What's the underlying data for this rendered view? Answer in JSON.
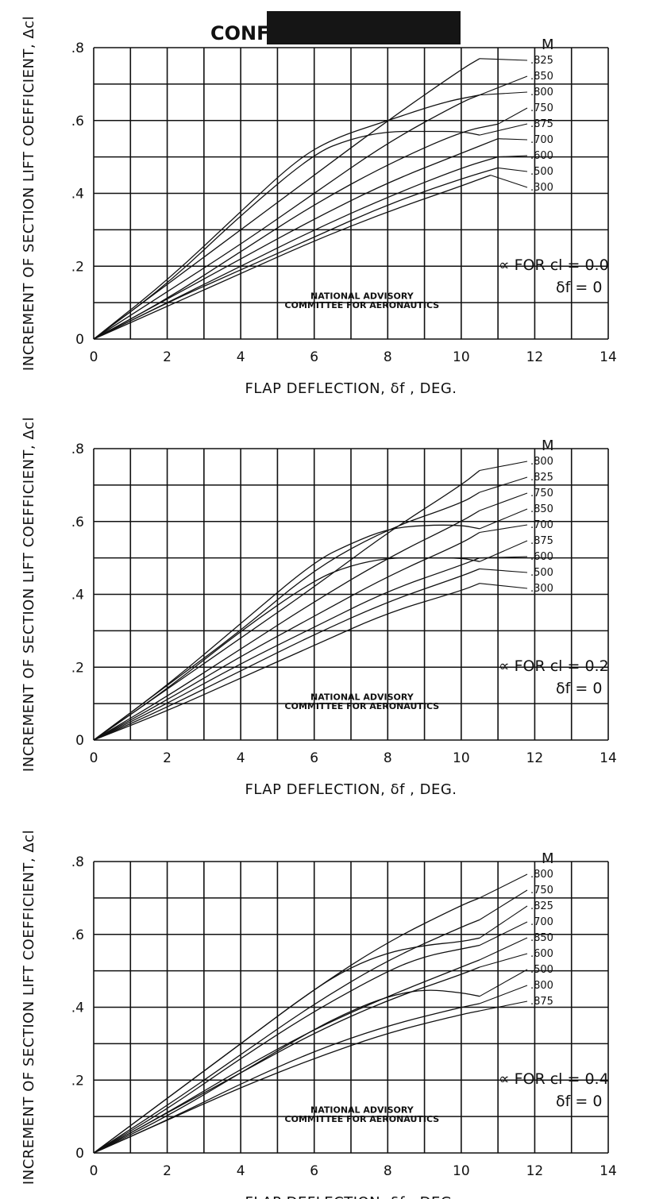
{
  "header": {
    "stamp_text": "CONF"
  },
  "chart_data": [
    {
      "type": "line",
      "xlabel": "FLAP DEFLECTION, δf , DEG.",
      "ylabel": "INCREMENT OF SECTION LIFT COEFFICIENT, Δcl",
      "legend_title": "M",
      "condition": [
        "∝ FOR cl = 0.0",
        "δf = 0"
      ],
      "note": [
        "NATIONAL ADVISORY",
        "COMMITTEE FOR AERONAUTICS"
      ],
      "xlim": [
        0,
        14
      ],
      "ylim": [
        0,
        0.8
      ],
      "x_ticks": [
        0,
        2,
        4,
        6,
        8,
        10,
        12,
        14
      ],
      "x_tick_labels": [
        "0",
        "2",
        "4",
        "6",
        "8",
        "10",
        "12",
        "14"
      ],
      "y_ticks": [
        0,
        0.2,
        0.4,
        0.6,
        0.8
      ],
      "y_tick_labels": [
        "0",
        ".2",
        ".4",
        ".6",
        ".8"
      ],
      "grid": true,
      "series": [
        {
          "name": ".825",
          "x": [
            0,
            2,
            4,
            6,
            8,
            10,
            10.5
          ],
          "y": [
            0,
            0.15,
            0.3,
            0.45,
            0.6,
            0.74,
            0.77
          ]
        },
        {
          "name": ".850",
          "x": [
            0,
            2,
            4,
            5.5,
            6.5,
            8,
            9.5,
            10.5
          ],
          "y": [
            0,
            0.16,
            0.35,
            0.49,
            0.55,
            0.6,
            0.65,
            0.67
          ]
        },
        {
          "name": ".800",
          "x": [
            0,
            2,
            4,
            6,
            8,
            10,
            10.5
          ],
          "y": [
            0,
            0.13,
            0.26,
            0.4,
            0.54,
            0.65,
            0.67
          ]
        },
        {
          "name": ".750",
          "x": [
            0,
            2,
            4,
            6,
            8,
            10,
            11
          ],
          "y": [
            0,
            0.11,
            0.24,
            0.37,
            0.48,
            0.57,
            0.59
          ]
        },
        {
          "name": ".875",
          "x": [
            0,
            2,
            4,
            6,
            7,
            8,
            9,
            10,
            10.5
          ],
          "y": [
            0,
            0.15,
            0.34,
            0.51,
            0.55,
            0.57,
            0.57,
            0.57,
            0.56
          ]
        },
        {
          "name": ".700",
          "x": [
            0,
            2,
            4,
            6,
            8,
            10,
            11
          ],
          "y": [
            0,
            0.11,
            0.22,
            0.33,
            0.43,
            0.51,
            0.55
          ]
        },
        {
          "name": ".600",
          "x": [
            0,
            2,
            4,
            6,
            8,
            10,
            11
          ],
          "y": [
            0,
            0.1,
            0.2,
            0.3,
            0.39,
            0.47,
            0.5
          ]
        },
        {
          "name": ".500",
          "x": [
            0,
            2,
            4,
            6,
            8,
            10,
            11
          ],
          "y": [
            0,
            0.1,
            0.19,
            0.28,
            0.37,
            0.44,
            0.47
          ]
        },
        {
          "name": ".300",
          "x": [
            0,
            2,
            4,
            6,
            8,
            10,
            10.8
          ],
          "y": [
            0,
            0.09,
            0.18,
            0.27,
            0.35,
            0.42,
            0.45
          ]
        }
      ]
    },
    {
      "type": "line",
      "xlabel": "FLAP DEFLECTION, δf , DEG.",
      "ylabel": "INCREMENT OF SECTION LIFT COEFFICIENT, Δcl",
      "legend_title": "M",
      "condition": [
        "∝ FOR cl = 0.2",
        "δf = 0"
      ],
      "note": [
        "NATIONAL ADVISORY",
        "COMMITTEE FOR AERONAUTICS"
      ],
      "xlim": [
        0,
        14
      ],
      "ylim": [
        0,
        0.8
      ],
      "x_ticks": [
        0,
        2,
        4,
        6,
        8,
        10,
        12,
        14
      ],
      "x_tick_labels": [
        "0",
        "2",
        "4",
        "6",
        "8",
        "10",
        "12",
        "14"
      ],
      "y_ticks": [
        0,
        0.2,
        0.4,
        0.6,
        0.8
      ],
      "y_tick_labels": [
        "0",
        ".2",
        ".4",
        ".6",
        ".8"
      ],
      "grid": true,
      "series": [
        {
          "name": ".800",
          "x": [
            0,
            2,
            4,
            6,
            8,
            10,
            10.5
          ],
          "y": [
            0,
            0.14,
            0.28,
            0.42,
            0.57,
            0.7,
            0.74
          ]
        },
        {
          "name": ".825",
          "x": [
            0,
            2,
            4,
            6,
            8,
            10,
            10.5
          ],
          "y": [
            0,
            0.15,
            0.3,
            0.47,
            0.58,
            0.65,
            0.68
          ]
        },
        {
          "name": ".750",
          "x": [
            0,
            2,
            4,
            6,
            8,
            10,
            10.5
          ],
          "y": [
            0,
            0.12,
            0.25,
            0.38,
            0.5,
            0.6,
            0.63
          ]
        },
        {
          "name": ".850",
          "x": [
            0,
            2,
            4,
            6,
            7,
            8,
            9,
            10,
            10.5
          ],
          "y": [
            0,
            0.15,
            0.32,
            0.49,
            0.54,
            0.58,
            0.59,
            0.59,
            0.58
          ]
        },
        {
          "name": ".700",
          "x": [
            0,
            2,
            4,
            6,
            8,
            10,
            10.5
          ],
          "y": [
            0,
            0.11,
            0.23,
            0.34,
            0.45,
            0.54,
            0.57
          ]
        },
        {
          "name": ".875",
          "x": [
            0,
            2,
            4,
            6,
            7,
            8,
            9,
            10,
            10.5
          ],
          "y": [
            0,
            0.14,
            0.3,
            0.44,
            0.48,
            0.5,
            0.5,
            0.5,
            0.49
          ]
        },
        {
          "name": ".600",
          "x": [
            0,
            2,
            4,
            6,
            8,
            10,
            10.5
          ],
          "y": [
            0,
            0.1,
            0.21,
            0.31,
            0.41,
            0.48,
            0.5
          ]
        },
        {
          "name": ".500",
          "x": [
            0,
            2,
            4,
            6,
            8,
            10,
            10.5
          ],
          "y": [
            0,
            0.09,
            0.19,
            0.29,
            0.38,
            0.45,
            0.47
          ]
        },
        {
          "name": ".300",
          "x": [
            0,
            2,
            4,
            6,
            8,
            10,
            10.5
          ],
          "y": [
            0,
            0.08,
            0.17,
            0.26,
            0.35,
            0.41,
            0.43
          ]
        }
      ]
    },
    {
      "type": "line",
      "xlabel": "FLAP DEFLECTION, δf , DEG.",
      "ylabel": "INCREMENT OF SECTION LIFT COEFFICIENT, Δcl",
      "legend_title": "M",
      "condition": [
        "∝ FOR cl = 0.4",
        "δf = 0"
      ],
      "note": [
        "NATIONAL ADVISORY",
        "COMMITTEE FOR AERONAUTICS"
      ],
      "xlim": [
        0,
        14
      ],
      "ylim": [
        0,
        0.8
      ],
      "x_ticks": [
        0,
        2,
        4,
        6,
        8,
        10,
        12,
        14
      ],
      "x_tick_labels": [
        "0",
        "2",
        "4",
        "6",
        "8",
        "10",
        "12",
        "14"
      ],
      "y_ticks": [
        0,
        0.2,
        0.4,
        0.6,
        0.8
      ],
      "y_tick_labels": [
        "0",
        ".2",
        ".4",
        ".6",
        ".8"
      ],
      "grid": true,
      "series": [
        {
          "name": ".800",
          "x": [
            0,
            2,
            4,
            6,
            8,
            10,
            10.5
          ],
          "y": [
            0,
            0.15,
            0.3,
            0.45,
            0.58,
            0.68,
            0.7
          ]
        },
        {
          "name": ".750",
          "x": [
            0,
            2,
            4,
            6,
            8,
            10,
            10.5
          ],
          "y": [
            0,
            0.13,
            0.27,
            0.41,
            0.53,
            0.62,
            0.64
          ]
        },
        {
          "name": ".825",
          "x": [
            0,
            2,
            4,
            6,
            7,
            8,
            9,
            10,
            10.5
          ],
          "y": [
            0,
            0.15,
            0.3,
            0.45,
            0.51,
            0.55,
            0.57,
            0.58,
            0.59
          ]
        },
        {
          "name": ".700",
          "x": [
            0,
            2,
            4,
            6,
            8,
            9,
            10,
            10.5
          ],
          "y": [
            0,
            0.12,
            0.26,
            0.39,
            0.5,
            0.54,
            0.56,
            0.57
          ]
        },
        {
          "name": ".850",
          "x": [
            0,
            2,
            4,
            6,
            8,
            10,
            10.5
          ],
          "y": [
            0,
            0.11,
            0.23,
            0.34,
            0.43,
            0.51,
            0.53
          ]
        },
        {
          "name": ".600",
          "x": [
            0,
            2,
            4,
            6,
            8,
            10,
            10.5
          ],
          "y": [
            0,
            0.11,
            0.22,
            0.33,
            0.42,
            0.49,
            0.51
          ]
        },
        {
          "name": ".500",
          "x": [
            0,
            2,
            4,
            6,
            7,
            8,
            9,
            10,
            10.5
          ],
          "y": [
            0,
            0.1,
            0.22,
            0.34,
            0.39,
            0.43,
            0.45,
            0.44,
            0.43
          ]
        },
        {
          "name": ".800",
          "x": [
            0,
            2,
            4,
            6,
            8,
            10,
            10.5
          ],
          "y": [
            0,
            0.09,
            0.19,
            0.28,
            0.35,
            0.4,
            0.41
          ]
        },
        {
          "name": ".875",
          "x": [
            0,
            2,
            4,
            6,
            8,
            10,
            10.5
          ],
          "y": [
            0,
            0.09,
            0.18,
            0.26,
            0.33,
            0.38,
            0.39
          ]
        }
      ]
    }
  ]
}
